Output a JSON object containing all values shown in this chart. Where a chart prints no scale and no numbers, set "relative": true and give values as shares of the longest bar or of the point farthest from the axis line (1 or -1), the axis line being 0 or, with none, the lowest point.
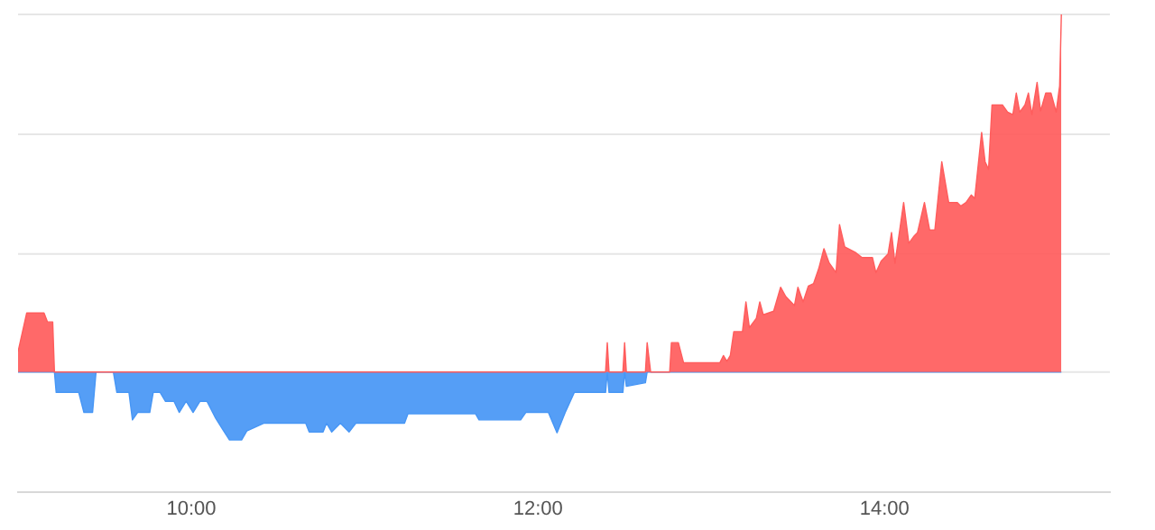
{
  "chart_data": {
    "type": "area",
    "relative": true,
    "legend": false,
    "xlim": [
      9,
      15.3
    ],
    "ref_lines": [
      {
        "axis": "y",
        "value": 1,
        "color": "#e6e6e6"
      },
      {
        "axis": "y",
        "value": 0.665,
        "color": "#e6e6e6"
      },
      {
        "axis": "y",
        "value": 0.33,
        "color": "#e6e6e6"
      },
      {
        "axis": "y",
        "value": 0,
        "color": "#e6e6e6"
      }
    ],
    "xticks": [
      {
        "value": 10,
        "label": "10:00"
      },
      {
        "value": 12,
        "label": "12:00"
      },
      {
        "value": 14,
        "label": "14:00"
      }
    ],
    "x": [
      9.0,
      9.05,
      9.15,
      9.17,
      9.2,
      9.21,
      9.22,
      9.35,
      9.38,
      9.43,
      9.45,
      9.55,
      9.57,
      9.64,
      9.66,
      9.69,
      9.76,
      9.78,
      9.82,
      9.85,
      9.9,
      9.93,
      9.97,
      10.01,
      10.05,
      10.09,
      10.14,
      10.18,
      10.22,
      10.29,
      10.32,
      10.42,
      10.66,
      10.68,
      10.76,
      10.78,
      10.81,
      10.86,
      10.91,
      10.95,
      11.23,
      11.25,
      11.64,
      11.66,
      11.9,
      11.93,
      12.06,
      12.11,
      12.16,
      12.21,
      12.25,
      12.3,
      12.39,
      12.4,
      12.41,
      12.49,
      12.5,
      12.51,
      12.62,
      12.63,
      12.65,
      12.76,
      12.77,
      12.81,
      12.84,
      13.05,
      13.07,
      13.09,
      13.11,
      13.13,
      13.18,
      13.2,
      13.22,
      13.26,
      13.28,
      13.3,
      13.36,
      13.4,
      13.43,
      13.48,
      13.5,
      13.53,
      13.56,
      13.59,
      13.62,
      13.65,
      13.68,
      13.72,
      13.74,
      13.77,
      13.83,
      13.87,
      13.93,
      13.95,
      13.98,
      14.02,
      14.04,
      14.06,
      14.11,
      14.14,
      14.17,
      14.19,
      14.23,
      14.26,
      14.29,
      14.33,
      14.37,
      14.42,
      14.44,
      14.47,
      14.5,
      14.52,
      14.56,
      14.58,
      14.6,
      14.62,
      14.68,
      14.71,
      14.74,
      14.76,
      14.78,
      14.81,
      14.83,
      14.85,
      14.88,
      14.9,
      14.93,
      14.96,
      14.99,
      15.01,
      15.02
    ],
    "series": [
      {
        "color": "#ff5c5c",
        "values": [
          0.057,
          0.165,
          0.165,
          0.14,
          0.14,
          0,
          0,
          0,
          0,
          0,
          0,
          0,
          0,
          0,
          0,
          0,
          0,
          0,
          0,
          0,
          0,
          0,
          0,
          0,
          0,
          0,
          0,
          0,
          0,
          0,
          0,
          0,
          0,
          0,
          0,
          0,
          0,
          0,
          0,
          0,
          0,
          0,
          0,
          0,
          0,
          0,
          0,
          0,
          0,
          0,
          0,
          0,
          0,
          0.082,
          0,
          0,
          0.082,
          0,
          0,
          0.082,
          0,
          0,
          0.082,
          0.082,
          0.026,
          0.026,
          0.046,
          0.03,
          0.046,
          0.113,
          0.113,
          0.196,
          0.124,
          0.15,
          0.196,
          0.16,
          0.17,
          0.237,
          0.211,
          0.186,
          0.237,
          0.196,
          0.24,
          0.247,
          0.289,
          0.345,
          0.305,
          0.278,
          0.412,
          0.35,
          0.335,
          0.32,
          0.32,
          0.278,
          0.31,
          0.33,
          0.39,
          0.304,
          0.474,
          0.36,
          0.38,
          0.39,
          0.474,
          0.397,
          0.397,
          0.588,
          0.474,
          0.474,
          0.464,
          0.474,
          0.495,
          0.485,
          0.67,
          0.588,
          0.567,
          0.747,
          0.747,
          0.727,
          0.72,
          0.78,
          0.727,
          0.747,
          0.78,
          0.72,
          0.81,
          0.73,
          0.78,
          0.78,
          0.727,
          0.8,
          1
        ]
      },
      {
        "color": "#4796f5",
        "values": [
          0,
          0,
          0,
          0,
          0,
          0,
          -0.057,
          -0.057,
          -0.113,
          -0.113,
          0,
          0,
          -0.057,
          -0.057,
          -0.134,
          -0.113,
          -0.113,
          -0.057,
          -0.057,
          -0.082,
          -0.082,
          -0.113,
          -0.082,
          -0.113,
          -0.082,
          -0.082,
          -0.129,
          -0.16,
          -0.19,
          -0.19,
          -0.165,
          -0.143,
          -0.143,
          -0.168,
          -0.168,
          -0.143,
          -0.168,
          -0.143,
          -0.168,
          -0.143,
          -0.143,
          -0.117,
          -0.117,
          -0.134,
          -0.134,
          -0.113,
          -0.113,
          -0.17,
          -0.11,
          -0.057,
          -0.057,
          -0.057,
          -0.057,
          0,
          -0.057,
          -0.057,
          0,
          -0.04,
          -0.03,
          0,
          0,
          0,
          0,
          0,
          0,
          0,
          0,
          0,
          0,
          0,
          0,
          0,
          0,
          0,
          0,
          0,
          0,
          0,
          0,
          0,
          0,
          0,
          0,
          0,
          0,
          0,
          0,
          0,
          0,
          0,
          0,
          0,
          0,
          0,
          0,
          0,
          0,
          0,
          0,
          0,
          0,
          0,
          0,
          0,
          0,
          0,
          0,
          0,
          0,
          0,
          0,
          0,
          0,
          0,
          0,
          0,
          0,
          0,
          0,
          0,
          0,
          0,
          0,
          0,
          0,
          0,
          0,
          0,
          0,
          0,
          0
        ]
      }
    ]
  }
}
